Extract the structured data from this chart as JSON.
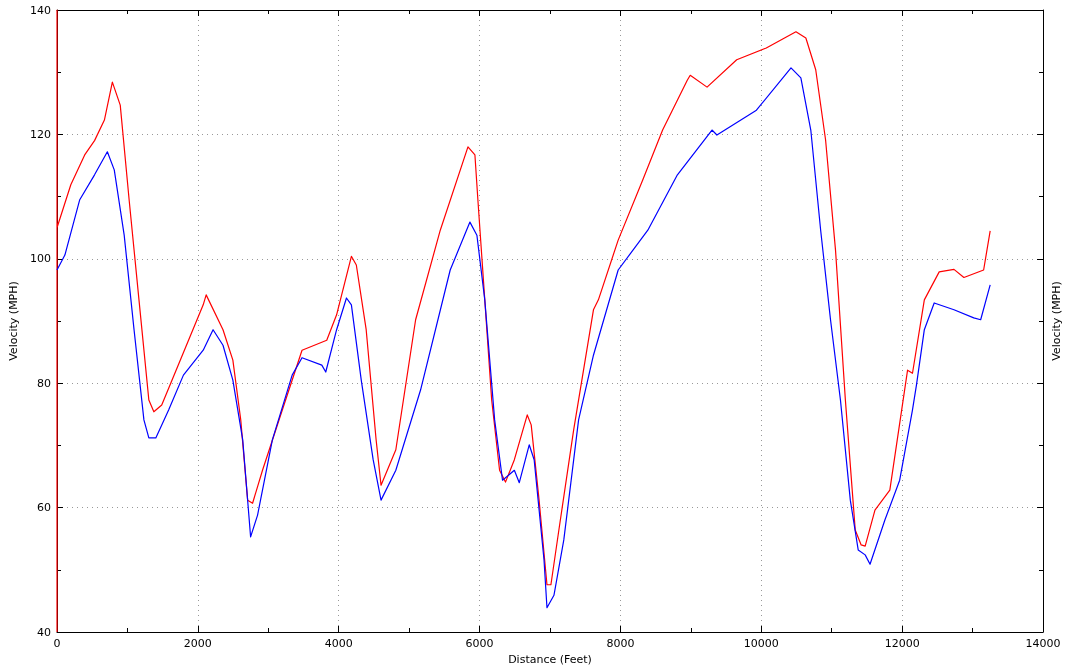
{
  "chart_data": {
    "type": "line",
    "xlabel": "Distance (Feet)",
    "ylabel": "Velocity (MPH)",
    "y2label": "Velocity (MPH)",
    "xlim": [
      0,
      14000
    ],
    "xticks": [
      0,
      2000,
      4000,
      6000,
      8000,
      10000,
      12000,
      14000
    ],
    "ylim": [
      40,
      140
    ],
    "yticks": [
      40,
      60,
      80,
      100,
      120,
      140
    ],
    "grid": true,
    "marker": "none",
    "line_style": "solid",
    "series": [
      {
        "color": "#ff0000",
        "x": [
          0,
          0,
          0,
          196,
          393,
          533,
          673,
          786,
          898,
          1024,
          1164,
          1304,
          1375,
          1487,
          1725,
          2076,
          2118,
          2357,
          2497,
          2609,
          2707,
          2777,
          2918,
          3199,
          3479,
          3830,
          3970,
          4180,
          4250,
          4390,
          4531,
          4601,
          4811,
          5092,
          5442,
          5835,
          5934,
          5976,
          6074,
          6172,
          6284,
          6368,
          6494,
          6677,
          6733,
          6845,
          6957,
          7013,
          7126,
          7336,
          7617,
          7687,
          7968,
          8318,
          8599,
          8949,
          8991,
          9230,
          9651,
          10071,
          10492,
          10633,
          10773,
          10913,
          11054,
          11194,
          11334,
          11418,
          11475,
          11614,
          11825,
          12077,
          12147,
          12315,
          12526,
          12736,
          12877,
          13157,
          13250
        ],
        "values": [
          40,
          140,
          105,
          111.9,
          116.7,
          119,
          122.3,
          128.4,
          124.7,
          109.5,
          93.4,
          77.3,
          75.4,
          76.5,
          83,
          92.6,
          94.2,
          88.6,
          83.7,
          74.1,
          61.2,
          60.7,
          66,
          75.7,
          85.3,
          86.9,
          91,
          100.4,
          99,
          88.6,
          70.9,
          63.6,
          69.3,
          90.2,
          104.6,
          118,
          116.7,
          109.5,
          93.4,
          77.3,
          66,
          64.1,
          67.7,
          74.9,
          73.3,
          61.2,
          47.6,
          47.6,
          56.4,
          72.5,
          91.8,
          93.4,
          103,
          112.7,
          120.7,
          128.7,
          129.5,
          127.6,
          132,
          133.9,
          136.5,
          135.5,
          130.4,
          119.1,
          101.4,
          77.3,
          56.4,
          54,
          53.8,
          59.6,
          62.8,
          82.1,
          81.6,
          93.4,
          97.9,
          98.3,
          97,
          98.2,
          104.5
        ]
      },
      {
        "color": "#0000ff",
        "x": [
          0,
          112,
          323,
          533,
          715,
          813,
          954,
          1094,
          1234,
          1304,
          1403,
          1585,
          1795,
          2076,
          2216,
          2357,
          2497,
          2637,
          2749,
          2848,
          3058,
          3339,
          3479,
          3760,
          3816,
          3970,
          4110,
          4180,
          4320,
          4489,
          4601,
          4811,
          5162,
          5583,
          5863,
          5962,
          6074,
          6214,
          6326,
          6494,
          6564,
          6705,
          6775,
          6915,
          6957,
          7056,
          7196,
          7406,
          7617,
          7968,
          8389,
          8809,
          9300,
          9370,
          9931,
          10422,
          10562,
          10703,
          10843,
          10983,
          11124,
          11264,
          11376,
          11475,
          11544,
          11755,
          11965,
          12147,
          12203,
          12315,
          12455,
          12736,
          13017,
          13115,
          13250
        ],
        "values": [
          98.2,
          100.6,
          109.5,
          113.5,
          117.2,
          114.3,
          103.8,
          88.6,
          74.1,
          71.2,
          71.2,
          75.7,
          81.3,
          85.3,
          88.6,
          86.1,
          80.5,
          70.9,
          55.3,
          58.8,
          70.9,
          81.3,
          84.1,
          82.9,
          81.8,
          88.6,
          93.7,
          92.6,
          80.5,
          67.7,
          61.2,
          66,
          78.9,
          98.2,
          105.9,
          103.8,
          93.4,
          74.1,
          64.4,
          66,
          64,
          70.1,
          67.7,
          51.6,
          43.9,
          45.9,
          54.8,
          74.1,
          84.5,
          98.2,
          104.6,
          113.5,
          120.7,
          119.9,
          123.9,
          130.7,
          129.1,
          120.7,
          104.6,
          90.2,
          77.3,
          61.2,
          53.2,
          52.4,
          50.9,
          58,
          64.4,
          75.7,
          79.7,
          88.6,
          92.9,
          91.8,
          90.5,
          90.2,
          95.8
        ]
      }
    ]
  }
}
